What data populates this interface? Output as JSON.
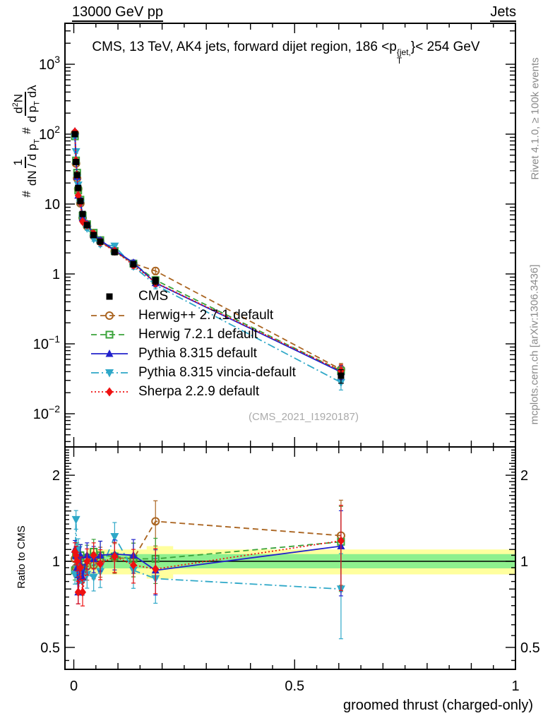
{
  "header": {
    "left": "13000 GeV pp",
    "right": "Jets"
  },
  "title": {
    "pre": "CMS, 13 TeV, AK4 jets, forward dijet region, 186 <p",
    "sup": "{jet,",
    "sub": "T",
    "post": "}< 254 GeV"
  },
  "ylabel": {
    "hash1": "#",
    "num1": "1",
    "den1a": "dN / d p",
    "den1b": "T",
    "hash2": "#",
    "num2a": "d",
    "num2b": "2",
    "num2c": "N",
    "den2a": "d p",
    "den2b": "T",
    "den2c": " dλ"
  },
  "credits": {
    "rivet": "Rivet 4.1.0, ≥ 100k events",
    "mcplots": "mcplots.cern.ch [arXiv:1306.3436]"
  },
  "watermark": "(CMS_2021_I1920187)",
  "legend": {
    "entries": [
      {
        "label": "CMS",
        "marker": "square",
        "line": "none",
        "color": "#000000"
      },
      {
        "label": "Herwig++ 2.7.1 default",
        "marker": "circle-open",
        "line": "dash",
        "color": "#aa6420"
      },
      {
        "label": "Herwig 7.2.1 default",
        "marker": "square-open",
        "line": "dash",
        "color": "#3aa33a"
      },
      {
        "label": "Pythia 8.315 default",
        "marker": "triangle-up",
        "line": "solid",
        "color": "#2222cc"
      },
      {
        "label": "Pythia 8.315 vincia-default",
        "marker": "triangle-down",
        "line": "dashdot",
        "color": "#2fa8c8"
      },
      {
        "label": "Sherpa 2.2.9 default",
        "marker": "diamond",
        "line": "dot",
        "color": "#ee1111"
      }
    ]
  },
  "chart_data": {
    "type": "line",
    "x_label": "groomed thrust (charged-only)",
    "x_range": [
      -0.02,
      1.0
    ],
    "x_major_ticks": [
      {
        "value": 0,
        "label": "0"
      },
      {
        "value": 0.5,
        "label": "0.5"
      },
      {
        "value": 1,
        "label": "1"
      }
    ],
    "y_main": {
      "scale": "log",
      "range": [
        0.0036,
        3500
      ],
      "ticks": [
        {
          "value": 1000,
          "base": "10",
          "exp": "3"
        },
        {
          "value": 100,
          "base": "10",
          "exp": "2"
        },
        {
          "value": 10,
          "base": "10",
          "exp": ""
        },
        {
          "value": 1,
          "base": "1",
          "exp": ""
        },
        {
          "value": 0.1,
          "base": "10",
          "exp": "−1"
        },
        {
          "value": 0.01,
          "base": "10",
          "exp": "−2"
        }
      ]
    },
    "y_ratio": {
      "scale": "log",
      "range": [
        0.42,
        2.48
      ],
      "label": "Ratio to CMS",
      "ticks": [
        {
          "value": 2,
          "label": "2"
        },
        {
          "value": 1,
          "label": "1"
        },
        {
          "value": 0.5,
          "label": "0.5"
        }
      ]
    },
    "x": [
      0.0025,
      0.005,
      0.0075,
      0.01,
      0.015,
      0.02,
      0.03,
      0.045,
      0.06,
      0.0925,
      0.135,
      0.185,
      0.605
    ],
    "cms_values": [
      100,
      40,
      26,
      17,
      11,
      7.2,
      5.0,
      3.6,
      2.9,
      2.05,
      1.38,
      0.8,
      0.035
    ],
    "err_frac": [
      0.05,
      0.05,
      0.05,
      0.06,
      0.06,
      0.07,
      0.07,
      0.07,
      0.08,
      0.08,
      0.09,
      0.12,
      0.22
    ],
    "mc_series": [
      {
        "id": "herwigpp",
        "name": "Herwig++ 2.7.1 default",
        "color": "#aa6420",
        "line": "dash",
        "marker": "circle-open",
        "ratio": [
          1.02,
          0.95,
          0.9,
          0.97,
          0.93,
          0.88,
          0.96,
          0.97,
          1.0,
          1.03,
          1.02,
          1.38,
          1.23
        ]
      },
      {
        "id": "herwig7",
        "name": "Herwig 7.2.1 default",
        "color": "#3aa33a",
        "line": "dash",
        "marker": "square-open",
        "ratio": [
          0.93,
          1.05,
          1.08,
          0.92,
          1.05,
          0.95,
          1.03,
          1.08,
          1.05,
          1.04,
          1.02,
          1.02,
          1.17
        ]
      },
      {
        "id": "vincia",
        "name": "Pythia 8.315 vincia-default",
        "color": "#2fa8c8",
        "line": "dashdot",
        "marker": "triangle-down",
        "ratio": [
          0.9,
          1.4,
          0.9,
          1.1,
          0.92,
          0.85,
          0.9,
          0.88,
          0.92,
          1.22,
          0.93,
          0.87,
          0.8
        ]
      },
      {
        "id": "pythia",
        "name": "Pythia 8.315 default",
        "color": "#2222cc",
        "line": "solid",
        "marker": "triangle-up",
        "ratio": [
          1.1,
          1.05,
          0.95,
          0.78,
          1.05,
          0.88,
          1.05,
          1.02,
          1.05,
          1.06,
          1.05,
          0.93,
          1.13
        ]
      },
      {
        "id": "sherpa",
        "name": "Sherpa 2.2.9 default",
        "color": "#ee1111",
        "line": "dot",
        "marker": "diamond",
        "ratio": [
          1.08,
          1.05,
          1.0,
          0.78,
          0.95,
          0.78,
          1.0,
          1.05,
          0.98,
          1.04,
          0.97,
          0.94,
          1.18
        ]
      }
    ],
    "bands": {
      "yellow_color": "#ffff9e",
      "green_color": "#8ef08e",
      "yellow": [
        {
          "x0": 0.03,
          "x1": 1.0,
          "lo": 0.9,
          "hi": 1.1
        },
        {
          "x0": 0.165,
          "x1": 0.225,
          "lo": 0.87,
          "hi": 1.13
        }
      ],
      "green": [
        {
          "x0": 0.03,
          "x1": 1.0,
          "lo": 0.945,
          "hi": 1.06
        }
      ]
    }
  }
}
